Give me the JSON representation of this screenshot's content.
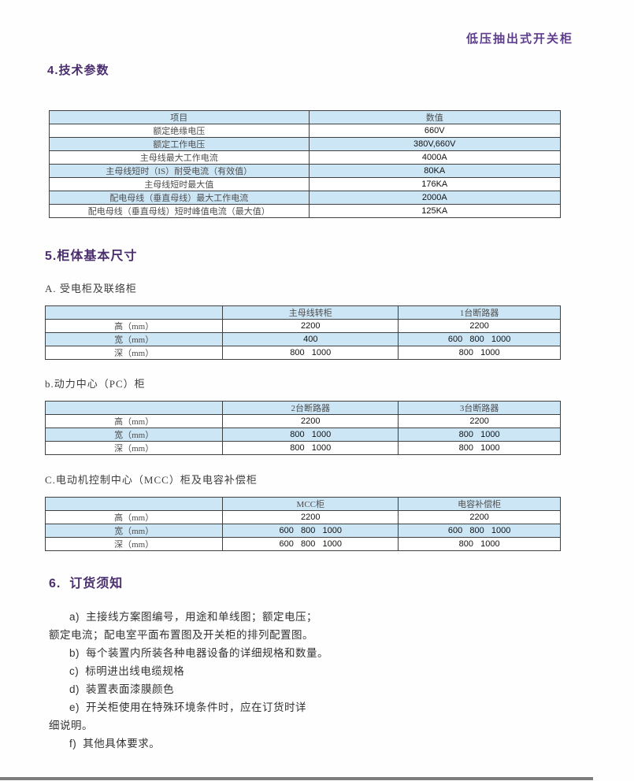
{
  "page": {
    "doc_title": "低压抽出式开关柜"
  },
  "sections": {
    "s4_title": "4.技术参数",
    "s5_title": "5.柜体基本尺寸",
    "s6_title": "6.  订货须知"
  },
  "tech_table": {
    "headers": [
      "项目",
      "数值"
    ],
    "rows": [
      {
        "label": "额定绝缘电压",
        "value": "660V"
      },
      {
        "label": "额定工作电压",
        "value": "380V,660V"
      },
      {
        "label": "主母线最大工作电流",
        "value": "4000A"
      },
      {
        "label": "主母线短时（IS）耐受电流（有效值）",
        "value": "80KA"
      },
      {
        "label": "主母线短时最大值",
        "value": "176KA"
      },
      {
        "label": "配电母线（垂直母线）最大工作电流",
        "value": "2000A"
      },
      {
        "label": "配电母线（垂直母线）短时峰值电流（最大值）",
        "value": "125KA"
      }
    ]
  },
  "dim_tables": {
    "a": {
      "caption": "A. 受电柜及联络柜",
      "col1": "主母线转柜",
      "col2": "1台断路器",
      "rows": [
        {
          "label": "高（mm）",
          "v1": "2200",
          "v2": "2200"
        },
        {
          "label": "宽（mm）",
          "v1": "400",
          "v2": "600   800   1000"
        },
        {
          "label": "深（mm）",
          "v1": "800   1000",
          "v2": "800   1000"
        }
      ]
    },
    "b": {
      "caption": "b.动力中心（PC）柜",
      "col1": "2台断路器",
      "col2": "3台断路器",
      "rows": [
        {
          "label": "高（mm）",
          "v1": "2200",
          "v2": "2200"
        },
        {
          "label": "宽（mm）",
          "v1": "800   1000",
          "v2": "800   1000"
        },
        {
          "label": "深（mm）",
          "v1": "800   1000",
          "v2": "800   1000"
        }
      ]
    },
    "c": {
      "caption": "C.电动机控制中心（MCC）柜及电容补偿柜",
      "col1": "MCC柜",
      "col2": "电容补偿柜",
      "rows": [
        {
          "label": "高（mm）",
          "v1": "2200",
          "v2": "2200"
        },
        {
          "label": "宽（mm）",
          "v1": "600   800   1000",
          "v2": "600   800   1000"
        },
        {
          "label": "深（mm）",
          "v1": "600   800   1000",
          "v2": "800   1000"
        }
      ]
    }
  },
  "ordering": {
    "items": [
      {
        "letter": "a)",
        "line1": "主接线方案图编号，用途和单线图；额定电压；",
        "line2": "额定电流；配电室平面布置图及开关柜的排列配置图。"
      },
      {
        "letter": "b)",
        "line1": "每个装置内所装各种电器设备的详细规格和数量。"
      },
      {
        "letter": "c)",
        "line1": "标明进出线电缆规格"
      },
      {
        "letter": "d)",
        "line1": "装置表面漆膜颜色"
      },
      {
        "letter": "e)",
        "line1": "开关柜使用在特殊环境条件时，应在订货时详",
        "line2": "细说明。"
      },
      {
        "letter": "f)",
        "line1": "其他具体要求。"
      }
    ]
  },
  "colors": {
    "accent_purple_title": "#5e3d8f",
    "accent_purple_section": "#4b2e6e",
    "table_row_blue": "#cde6f6",
    "table_border": "#404040",
    "footer_gray": "#7d7d7d"
  }
}
